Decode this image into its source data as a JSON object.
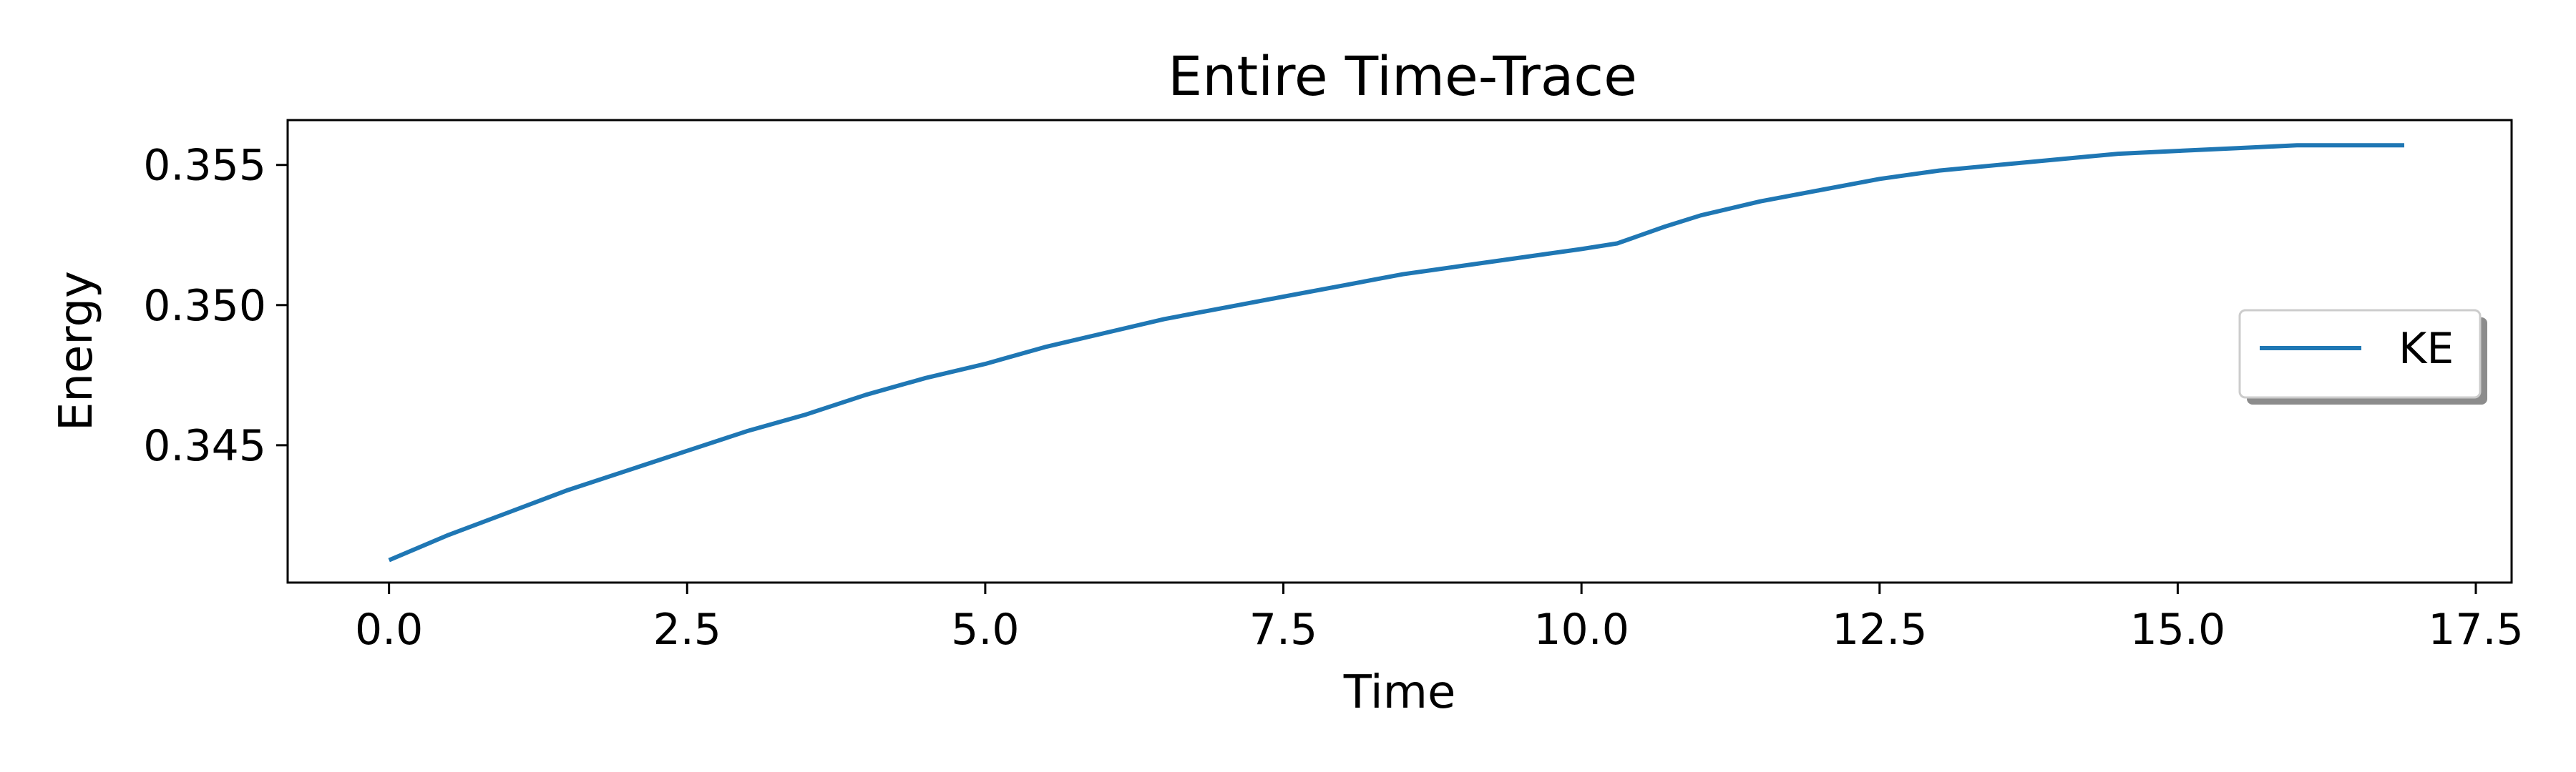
{
  "chart_data": {
    "type": "line",
    "title": "Entire Time-Trace",
    "xlabel": "Time",
    "ylabel": "Energy",
    "xlim": [
      -0.85,
      17.8
    ],
    "ylim": [
      0.3401,
      0.3566
    ],
    "xticks": [
      0.0,
      2.5,
      5.0,
      7.5,
      10.0,
      12.5,
      15.0,
      17.5
    ],
    "xtick_labels": [
      "0.0",
      "2.5",
      "5.0",
      "7.5",
      "10.0",
      "12.5",
      "15.0",
      "17.5"
    ],
    "yticks": [
      0.345,
      0.35,
      0.355
    ],
    "ytick_labels": [
      "0.345",
      "0.350",
      "0.355"
    ],
    "grid": false,
    "legend_position": "center-right",
    "colors": {
      "KE": "#1f77b4"
    },
    "series": [
      {
        "name": "KE",
        "x": [
          0.0,
          0.5,
          1.0,
          1.5,
          2.0,
          2.5,
          3.0,
          3.5,
          4.0,
          4.5,
          5.0,
          5.5,
          6.0,
          6.5,
          7.0,
          7.5,
          8.0,
          8.5,
          9.0,
          9.5,
          10.0,
          10.3,
          10.7,
          11.0,
          11.5,
          12.0,
          12.5,
          13.0,
          13.5,
          14.0,
          14.5,
          15.0,
          15.5,
          16.0,
          16.5,
          16.9
        ],
        "y": [
          0.3409,
          0.3418,
          0.3426,
          0.3434,
          0.3441,
          0.3448,
          0.3455,
          0.3461,
          0.3468,
          0.3474,
          0.3479,
          0.3485,
          0.349,
          0.3495,
          0.3499,
          0.3503,
          0.3507,
          0.3511,
          0.3514,
          0.3517,
          0.352,
          0.3522,
          0.3528,
          0.3532,
          0.3537,
          0.3541,
          0.3545,
          0.3548,
          0.355,
          0.3552,
          0.3554,
          0.3555,
          0.3556,
          0.3557,
          0.3557,
          0.3557
        ]
      }
    ]
  }
}
